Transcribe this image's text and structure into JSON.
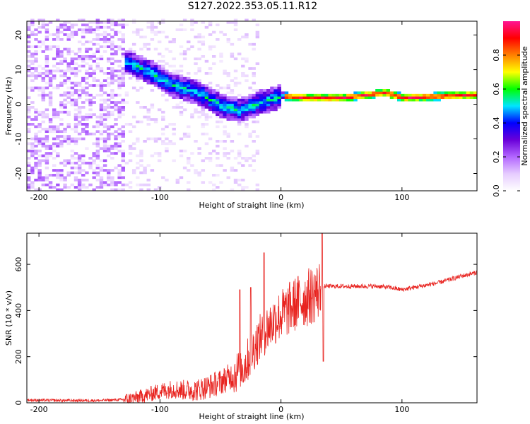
{
  "title": "S127.2022.353.05.11.R12",
  "chart_data": [
    {
      "type": "heatmap",
      "name": "spectrogram",
      "xlabel": "Height of straight line (km)",
      "ylabel": "Frequency (Hz)",
      "xlim": [
        -210,
        162
      ],
      "ylim": [
        -25,
        24
      ],
      "xticks": [
        -200,
        -100,
        0,
        100
      ],
      "yticks": [
        20,
        10,
        0,
        -10,
        -20
      ],
      "colorbar": {
        "label": "Normalized spectral amplitude",
        "range": [
          0,
          1
        ],
        "ticks": [
          0.0,
          0.2,
          0.4,
          0.6,
          0.8
        ],
        "colormap": [
          "#ffffff",
          "#e6ccff",
          "#b366ff",
          "#6a00d9",
          "#0000ff",
          "#00e5ff",
          "#00ff00",
          "#ffff00",
          "#ff8000",
          "#ff0000",
          "#ff1493"
        ]
      },
      "ridge": {
        "description_points_x": [
          -130,
          -110,
          -90,
          -70,
          -50,
          -35,
          -20,
          0,
          20,
          50,
          85,
          100,
          162
        ],
        "description_points_f": [
          12,
          9,
          5,
          3,
          -1,
          -2,
          0,
          2,
          1.5,
          1.5,
          3,
          1.5,
          2.5
        ],
        "peak_amplitude": 0.95
      }
    },
    {
      "type": "line",
      "name": "snr",
      "xlabel": "Height of straight line (km)",
      "ylabel": "SNR (10 * v/v)",
      "xlim": [
        -210,
        162
      ],
      "ylim": [
        0,
        735
      ],
      "xticks": [
        -200,
        -100,
        0,
        100
      ],
      "yticks": [
        0,
        200,
        400,
        600
      ],
      "color": "#e8231f",
      "series": [
        {
          "x": [
            -210,
            -180,
            -150,
            -130,
            -120,
            -110,
            -100,
            -90,
            -80,
            -70,
            -60,
            -50,
            -40,
            -30,
            -25,
            -20,
            -15,
            -10,
            -5,
            0,
            5,
            10,
            15,
            20,
            25,
            30,
            33,
            35,
            40,
            50,
            60,
            70,
            80,
            90,
            100,
            110,
            120,
            130,
            140,
            150,
            162
          ],
          "y": [
            12,
            10,
            10,
            14,
            22,
            35,
            50,
            60,
            55,
            55,
            70,
            90,
            120,
            160,
            210,
            260,
            300,
            330,
            360,
            380,
            400,
            420,
            440,
            450,
            465,
            480,
            500,
            505,
            505,
            505,
            505,
            505,
            505,
            500,
            490,
            500,
            510,
            520,
            535,
            550,
            565
          ]
        }
      ],
      "spikes": [
        {
          "x": -34,
          "y": 490
        },
        {
          "x": -25,
          "y": 500
        },
        {
          "x": -14,
          "y": 650
        },
        {
          "x": 34,
          "y": 740
        },
        {
          "x": 35,
          "y": 180
        }
      ]
    }
  ]
}
